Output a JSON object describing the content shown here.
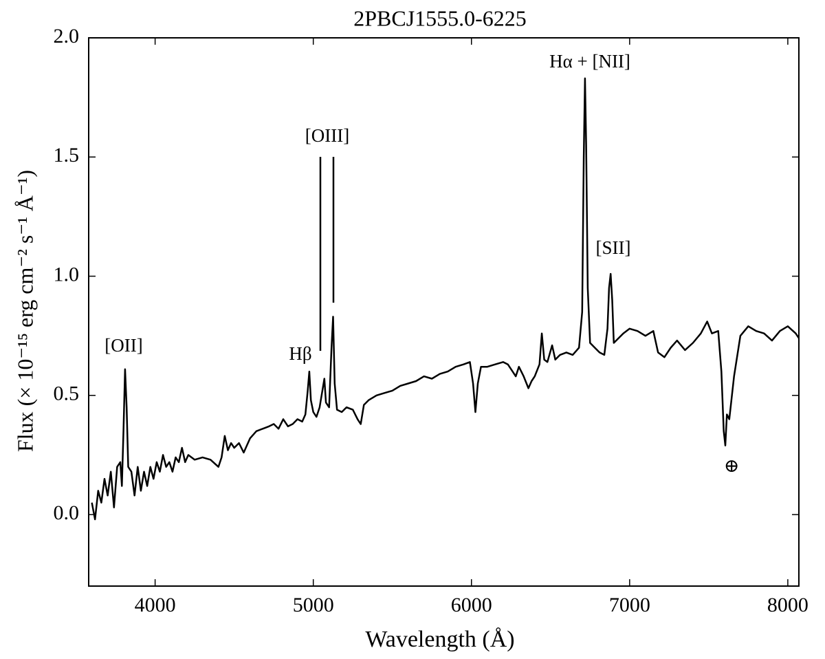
{
  "chart_data": {
    "type": "line",
    "title": "2PBCJ1555.0-6225",
    "xlabel": "Wavelength (Å)",
    "ylabel": "Flux (× 10⁻¹⁵ erg cm⁻² s⁻¹ Å⁻¹)",
    "annotations": [
      "[OII]",
      "Hβ",
      "[OIII]",
      "Hα + [NII]",
      "[SII]",
      "⊕"
    ],
    "xlim": [
      3580,
      8070
    ],
    "ylim": [
      -0.3,
      2.0
    ],
    "xticks": [
      4000,
      5000,
      6000,
      7000,
      8000
    ],
    "yticks": [
      {
        "value": 0,
        "label": "0.0"
      },
      0.5,
      {
        "value": 1,
        "label": "1.0"
      },
      1.5,
      {
        "value": 2,
        "label": "2.0"
      }
    ],
    "grid": false,
    "series": [
      {
        "color": "#000000",
        "x": [
          3600,
          3620,
          3640,
          3660,
          3680,
          3700,
          3720,
          3740,
          3760,
          3780,
          3790,
          3800,
          3810,
          3820,
          3830,
          3850,
          3870,
          3890,
          3910,
          3930,
          3950,
          3970,
          3990,
          4010,
          4030,
          4050,
          4070,
          4090,
          4110,
          4130,
          4150,
          4170,
          4190,
          4210,
          4250,
          4300,
          4350,
          4400,
          4420,
          4440,
          4460,
          4480,
          4500,
          4530,
          4560,
          4600,
          4640,
          4680,
          4720,
          4750,
          4780,
          4810,
          4840,
          4870,
          4900,
          4930,
          4950,
          4965,
          4975,
          4985,
          5000,
          5020,
          5040,
          5060,
          5070,
          5080,
          5100,
          5115,
          5125,
          5135,
          5150,
          5180,
          5210,
          5250,
          5280,
          5300,
          5320,
          5350,
          5400,
          5450,
          5500,
          5550,
          5600,
          5650,
          5700,
          5750,
          5800,
          5850,
          5900,
          5950,
          5990,
          6010,
          6025,
          6040,
          6060,
          6100,
          6150,
          6200,
          6230,
          6260,
          6280,
          6300,
          6330,
          6360,
          6380,
          6400,
          6430,
          6445,
          6460,
          6480,
          6510,
          6530,
          6560,
          6600,
          6640,
          6680,
          6700,
          6710,
          6718,
          6725,
          6735,
          6750,
          6780,
          6810,
          6840,
          6860,
          6870,
          6880,
          6890,
          6900,
          6930,
          6960,
          7000,
          7050,
          7100,
          7150,
          7180,
          7220,
          7260,
          7300,
          7350,
          7400,
          7450,
          7490,
          7520,
          7560,
          7580,
          7595,
          7605,
          7615,
          7630,
          7660,
          7700,
          7750,
          7800,
          7850,
          7900,
          7950,
          8000,
          8050,
          8070
        ],
        "values": [
          0.05,
          -0.02,
          0.1,
          0.05,
          0.15,
          0.08,
          0.18,
          0.03,
          0.2,
          0.22,
          0.12,
          0.35,
          0.61,
          0.45,
          0.2,
          0.18,
          0.08,
          0.2,
          0.1,
          0.18,
          0.12,
          0.2,
          0.15,
          0.22,
          0.18,
          0.25,
          0.2,
          0.22,
          0.18,
          0.24,
          0.22,
          0.28,
          0.22,
          0.25,
          0.23,
          0.24,
          0.23,
          0.2,
          0.24,
          0.33,
          0.27,
          0.3,
          0.28,
          0.3,
          0.26,
          0.32,
          0.35,
          0.36,
          0.37,
          0.38,
          0.36,
          0.4,
          0.37,
          0.38,
          0.4,
          0.39,
          0.42,
          0.52,
          0.6,
          0.48,
          0.43,
          0.41,
          0.45,
          0.53,
          0.57,
          0.47,
          0.45,
          0.7,
          0.83,
          0.55,
          0.44,
          0.43,
          0.45,
          0.44,
          0.4,
          0.38,
          0.46,
          0.48,
          0.5,
          0.51,
          0.52,
          0.54,
          0.55,
          0.56,
          0.58,
          0.57,
          0.59,
          0.6,
          0.62,
          0.63,
          0.64,
          0.55,
          0.43,
          0.55,
          0.62,
          0.62,
          0.63,
          0.64,
          0.63,
          0.6,
          0.58,
          0.62,
          0.58,
          0.53,
          0.56,
          0.58,
          0.63,
          0.76,
          0.65,
          0.64,
          0.71,
          0.65,
          0.67,
          0.68,
          0.67,
          0.7,
          0.85,
          1.5,
          1.83,
          1.55,
          0.95,
          0.72,
          0.7,
          0.68,
          0.67,
          0.78,
          0.95,
          1.01,
          0.9,
          0.72,
          0.74,
          0.76,
          0.78,
          0.77,
          0.75,
          0.77,
          0.68,
          0.66,
          0.7,
          0.73,
          0.69,
          0.72,
          0.76,
          0.81,
          0.76,
          0.77,
          0.6,
          0.35,
          0.29,
          0.42,
          0.4,
          0.58,
          0.75,
          0.79,
          0.77,
          0.76,
          0.73,
          0.77,
          0.79,
          0.76,
          0.74
        ]
      }
    ]
  }
}
